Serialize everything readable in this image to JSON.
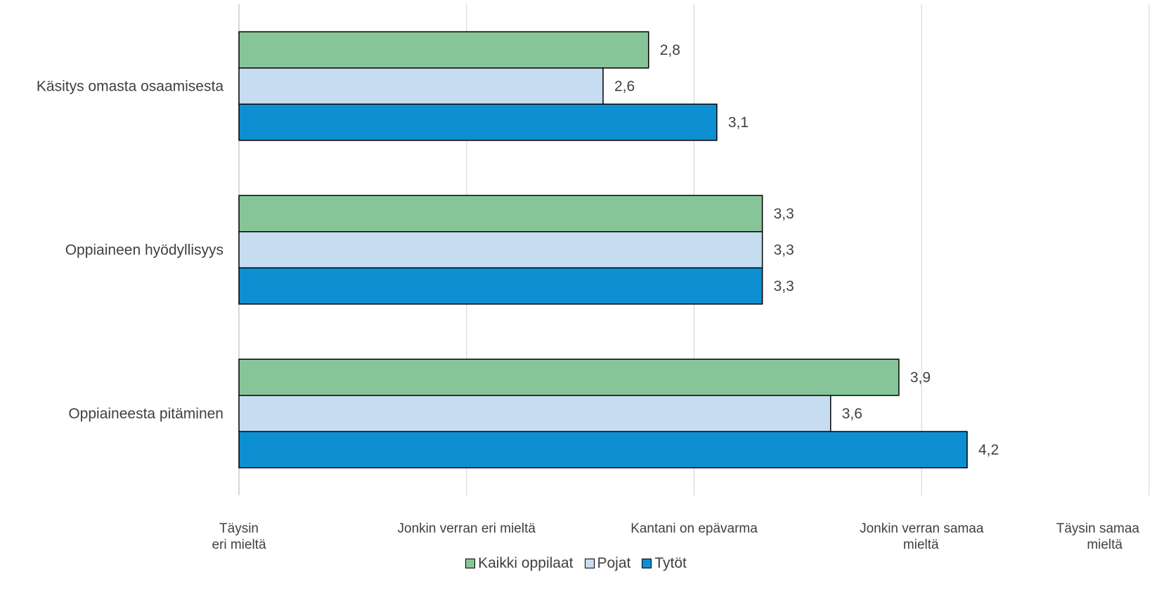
{
  "chart_data": {
    "type": "bar",
    "orientation": "horizontal",
    "categories": [
      "Käsitys omasta osaamisesta",
      "Oppiaineen hyödyllisyys",
      "Oppiaineesta pitäminen"
    ],
    "series": [
      {
        "name": "Kaikki oppilaat",
        "color": "#86c598",
        "values": [
          2.8,
          3.3,
          3.9
        ],
        "labels": [
          "2,8",
          "3,3",
          "3,9"
        ]
      },
      {
        "name": "Pojat",
        "color": "#c6dcf0",
        "values": [
          2.6,
          3.3,
          3.6
        ],
        "labels": [
          "2,6",
          "3,3",
          "3,6"
        ]
      },
      {
        "name": "Tytöt",
        "color": "#0e8fd2",
        "values": [
          3.1,
          3.3,
          4.2
        ],
        "labels": [
          "3,1",
          "3,3",
          "4,2"
        ]
      }
    ],
    "xlim": [
      1,
      5
    ],
    "x_ticks": [
      1,
      2,
      3,
      4,
      5
    ],
    "x_tick_labels": [
      [
        "Täysin",
        "eri mieltä"
      ],
      [
        "Jonkin verran eri mieltä"
      ],
      [
        "Kantani on epävarma"
      ],
      [
        "Jonkin verran samaa",
        "mieltä"
      ],
      [
        "Täysin samaa",
        "mieltä"
      ]
    ],
    "grid": true,
    "legend_position": "bottom"
  }
}
